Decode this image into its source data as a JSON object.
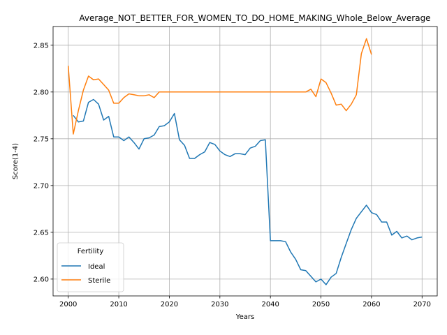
{
  "chart_data": {
    "type": "line",
    "title": "Average_NOT_BETTER_FOR_WOMEN_TO_DO_HOME_MAKING_Whole_Below_Average",
    "xlabel": "Years",
    "ylabel": "Score(1-4)",
    "xlim": [
      1997,
      2073
    ],
    "ylim": [
      2.582,
      2.87
    ],
    "xticks": [
      2000,
      2010,
      2020,
      2030,
      2040,
      2050,
      2060,
      2070
    ],
    "yticks": [
      2.6,
      2.65,
      2.7,
      2.75,
      2.8,
      2.85
    ],
    "ytick_labels": [
      "2.60",
      "2.65",
      "2.70",
      "2.75",
      "2.80",
      "2.85"
    ],
    "grid": true,
    "legend": {
      "title": "Fertility",
      "placement": "lower-left"
    },
    "series": [
      {
        "name": "Ideal",
        "color": "#1f77b4",
        "x": [
          2001,
          2002,
          2003,
          2004,
          2005,
          2006,
          2007,
          2008,
          2009,
          2010,
          2011,
          2012,
          2013,
          2014,
          2015,
          2016,
          2017,
          2018,
          2019,
          2020,
          2021,
          2022,
          2023,
          2024,
          2025,
          2026,
          2027,
          2028,
          2029,
          2030,
          2031,
          2032,
          2033,
          2034,
          2035,
          2036,
          2037,
          2038,
          2039,
          2040,
          2041,
          2042,
          2043,
          2044,
          2045,
          2046,
          2047,
          2048,
          2049,
          2050,
          2051,
          2052,
          2053,
          2054,
          2055,
          2056,
          2057,
          2058,
          2059,
          2060,
          2061,
          2062,
          2063,
          2064,
          2065,
          2066,
          2067,
          2068,
          2069,
          2070
        ],
        "values": [
          2.775,
          2.768,
          2.769,
          2.789,
          2.792,
          2.787,
          2.77,
          2.774,
          2.752,
          2.752,
          2.748,
          2.752,
          2.746,
          2.739,
          2.75,
          2.751,
          2.754,
          2.763,
          2.764,
          2.768,
          2.777,
          2.749,
          2.743,
          2.729,
          2.729,
          2.733,
          2.736,
          2.746,
          2.744,
          2.737,
          2.733,
          2.731,
          2.734,
          2.734,
          2.733,
          2.74,
          2.742,
          2.748,
          2.749,
          2.641,
          2.641,
          2.641,
          2.64,
          2.629,
          2.621,
          2.61,
          2.609,
          2.603,
          2.597,
          2.6,
          2.594,
          2.602,
          2.606,
          2.623,
          2.638,
          2.653,
          2.665,
          2.672,
          2.679,
          2.671,
          2.669,
          2.661,
          2.661,
          2.647,
          2.651,
          2.644,
          2.646,
          2.642,
          2.644,
          2.645
        ]
      },
      {
        "name": "Sterile",
        "color": "#ff7f0e",
        "x": [
          2000,
          2001,
          2002,
          2003,
          2004,
          2005,
          2006,
          2007,
          2008,
          2009,
          2010,
          2011,
          2012,
          2013,
          2014,
          2015,
          2016,
          2017,
          2018,
          2019,
          2020,
          2021,
          2022,
          2023,
          2024,
          2025,
          2026,
          2027,
          2028,
          2029,
          2030,
          2031,
          2032,
          2033,
          2034,
          2035,
          2036,
          2037,
          2038,
          2039,
          2040,
          2041,
          2042,
          2043,
          2044,
          2045,
          2046,
          2047,
          2048,
          2049,
          2050,
          2051,
          2052,
          2053,
          2054,
          2055,
          2056,
          2057,
          2058,
          2059,
          2060
        ],
        "values": [
          2.828,
          2.755,
          2.78,
          2.802,
          2.817,
          2.813,
          2.814,
          2.808,
          2.802,
          2.788,
          2.788,
          2.794,
          2.798,
          2.797,
          2.796,
          2.796,
          2.797,
          2.794,
          2.8,
          2.8,
          2.8,
          2.8,
          2.8,
          2.8,
          2.8,
          2.8,
          2.8,
          2.8,
          2.8,
          2.8,
          2.8,
          2.8,
          2.8,
          2.8,
          2.8,
          2.8,
          2.8,
          2.8,
          2.8,
          2.8,
          2.8,
          2.8,
          2.8,
          2.8,
          2.8,
          2.8,
          2.8,
          2.8,
          2.803,
          2.795,
          2.814,
          2.81,
          2.799,
          2.786,
          2.787,
          2.78,
          2.787,
          2.797,
          2.841,
          2.857,
          2.84
        ]
      }
    ]
  }
}
